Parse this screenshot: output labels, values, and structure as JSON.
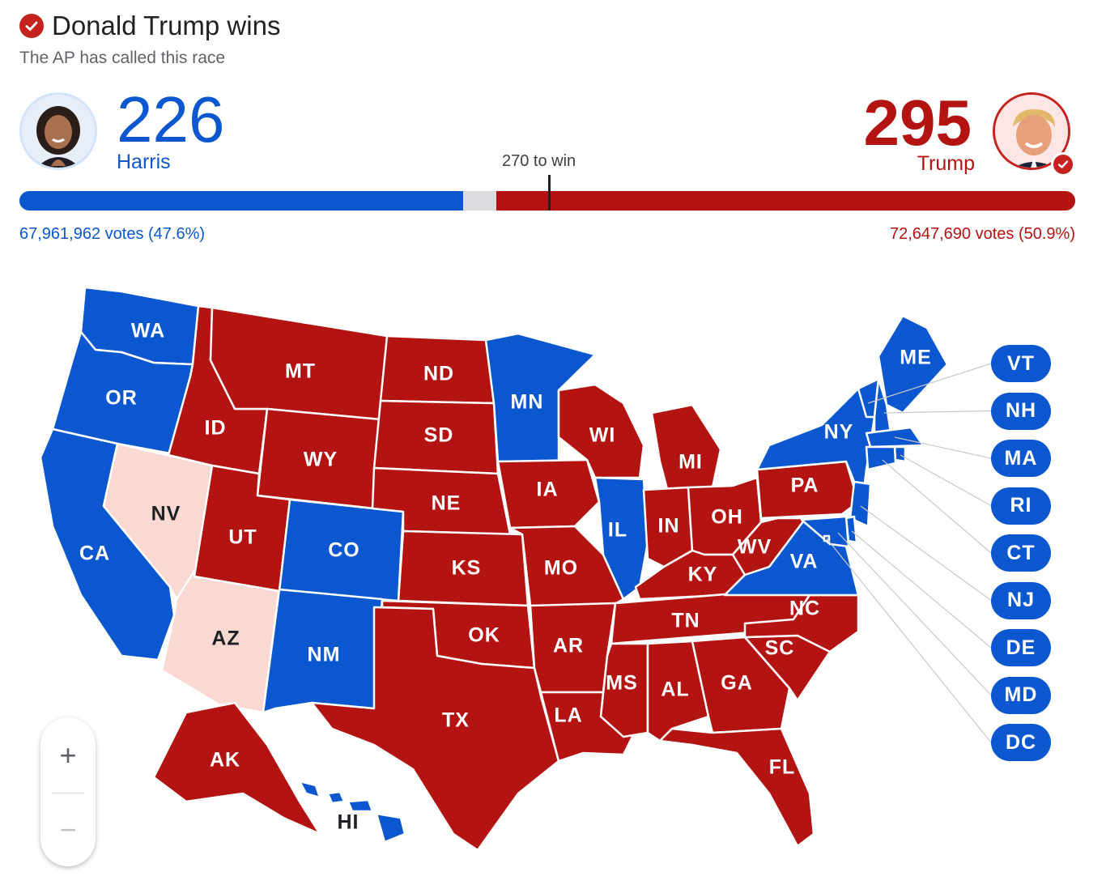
{
  "header": {
    "headline": "Donald Trump wins",
    "subhead": "The AP has called this race"
  },
  "candidates": {
    "harris": {
      "name": "Harris",
      "electoral_votes": "226",
      "popular_votes": "67,961,962 votes (47.6%)",
      "color": "#0b57d0"
    },
    "trump": {
      "name": "Trump",
      "electoral_votes": "295",
      "popular_votes": "72,647,690 votes (50.9%)",
      "color": "#b31412",
      "winner": true
    }
  },
  "threshold_label": "270 to win",
  "colors": {
    "dem": "#0b57d0",
    "gop": "#b31412",
    "gop_lean": "#fbd9d3",
    "uncalled": "#dadce0"
  },
  "icons": {
    "headline_check": "check-circle-icon",
    "winner_check": "check-badge-icon",
    "zoom_in": "plus-icon",
    "zoom_out": "minus-icon"
  },
  "chart_data": {
    "type": "map",
    "electoral_totals": {
      "Harris": 226,
      "Trump": 295,
      "total": 538,
      "to_win": 270
    },
    "states": [
      {
        "abbr": "WA",
        "winner": "dem"
      },
      {
        "abbr": "OR",
        "winner": "dem"
      },
      {
        "abbr": "CA",
        "winner": "dem"
      },
      {
        "abbr": "NV",
        "winner": "gop-lean"
      },
      {
        "abbr": "AZ",
        "winner": "gop-lean"
      },
      {
        "abbr": "ID",
        "winner": "gop"
      },
      {
        "abbr": "MT",
        "winner": "gop"
      },
      {
        "abbr": "WY",
        "winner": "gop"
      },
      {
        "abbr": "UT",
        "winner": "gop"
      },
      {
        "abbr": "CO",
        "winner": "dem"
      },
      {
        "abbr": "NM",
        "winner": "dem"
      },
      {
        "abbr": "ND",
        "winner": "gop"
      },
      {
        "abbr": "SD",
        "winner": "gop"
      },
      {
        "abbr": "NE",
        "winner": "gop"
      },
      {
        "abbr": "KS",
        "winner": "gop"
      },
      {
        "abbr": "OK",
        "winner": "gop"
      },
      {
        "abbr": "TX",
        "winner": "gop"
      },
      {
        "abbr": "MN",
        "winner": "dem"
      },
      {
        "abbr": "IA",
        "winner": "gop"
      },
      {
        "abbr": "MO",
        "winner": "gop"
      },
      {
        "abbr": "AR",
        "winner": "gop"
      },
      {
        "abbr": "LA",
        "winner": "gop"
      },
      {
        "abbr": "WI",
        "winner": "gop"
      },
      {
        "abbr": "IL",
        "winner": "dem"
      },
      {
        "abbr": "MI",
        "winner": "gop"
      },
      {
        "abbr": "IN",
        "winner": "gop"
      },
      {
        "abbr": "OH",
        "winner": "gop"
      },
      {
        "abbr": "KY",
        "winner": "gop"
      },
      {
        "abbr": "TN",
        "winner": "gop"
      },
      {
        "abbr": "MS",
        "winner": "gop"
      },
      {
        "abbr": "AL",
        "winner": "gop"
      },
      {
        "abbr": "GA",
        "winner": "gop"
      },
      {
        "abbr": "FL",
        "winner": "gop"
      },
      {
        "abbr": "SC",
        "winner": "gop"
      },
      {
        "abbr": "NC",
        "winner": "gop"
      },
      {
        "abbr": "VA",
        "winner": "dem"
      },
      {
        "abbr": "WV",
        "winner": "gop"
      },
      {
        "abbr": "PA",
        "winner": "gop"
      },
      {
        "abbr": "NY",
        "winner": "dem"
      },
      {
        "abbr": "ME",
        "winner": "dem"
      },
      {
        "abbr": "AK",
        "winner": "gop"
      },
      {
        "abbr": "HI",
        "winner": "dem"
      }
    ],
    "small_states": [
      {
        "abbr": "VT",
        "winner": "dem"
      },
      {
        "abbr": "NH",
        "winner": "dem"
      },
      {
        "abbr": "MA",
        "winner": "dem"
      },
      {
        "abbr": "RI",
        "winner": "dem"
      },
      {
        "abbr": "CT",
        "winner": "dem"
      },
      {
        "abbr": "NJ",
        "winner": "dem"
      },
      {
        "abbr": "DE",
        "winner": "dem"
      },
      {
        "abbr": "MD",
        "winner": "dem"
      },
      {
        "abbr": "DC",
        "winner": "dem"
      }
    ]
  }
}
